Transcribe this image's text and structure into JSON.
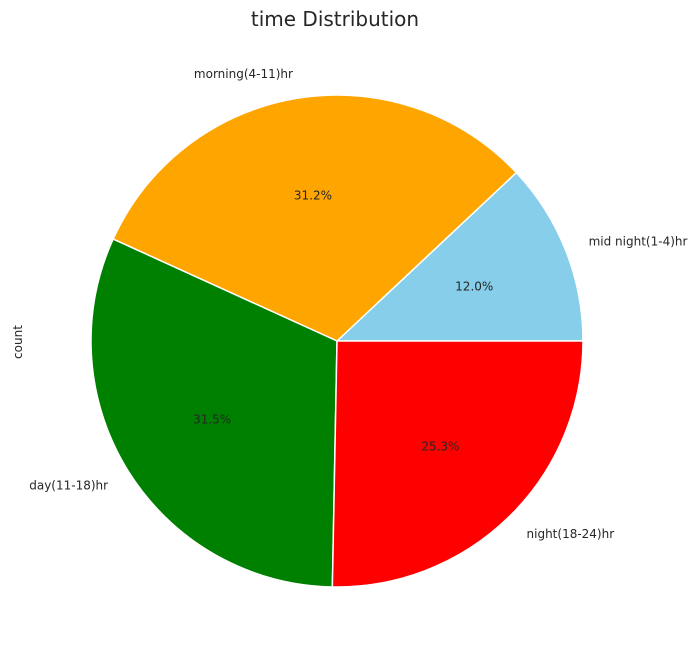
{
  "chart_data": {
    "type": "pie",
    "title": "time Distribution",
    "ylabel": "count",
    "startangle_deg": 0,
    "direction": "counterclockwise",
    "slices": [
      {
        "label": "mid night(1-4)hr",
        "value": 12.0,
        "pct_text": "12.0%",
        "color": "#87ceeb"
      },
      {
        "label": "morning(4-11)hr",
        "value": 31.2,
        "pct_text": "31.2%",
        "color": "#ffa500"
      },
      {
        "label": "day(11-18)hr",
        "value": 31.5,
        "pct_text": "31.5%",
        "color": "#008000"
      },
      {
        "label": "night(18-24)hr",
        "value": 25.3,
        "pct_text": "25.3%",
        "color": "#ff0000"
      }
    ]
  }
}
